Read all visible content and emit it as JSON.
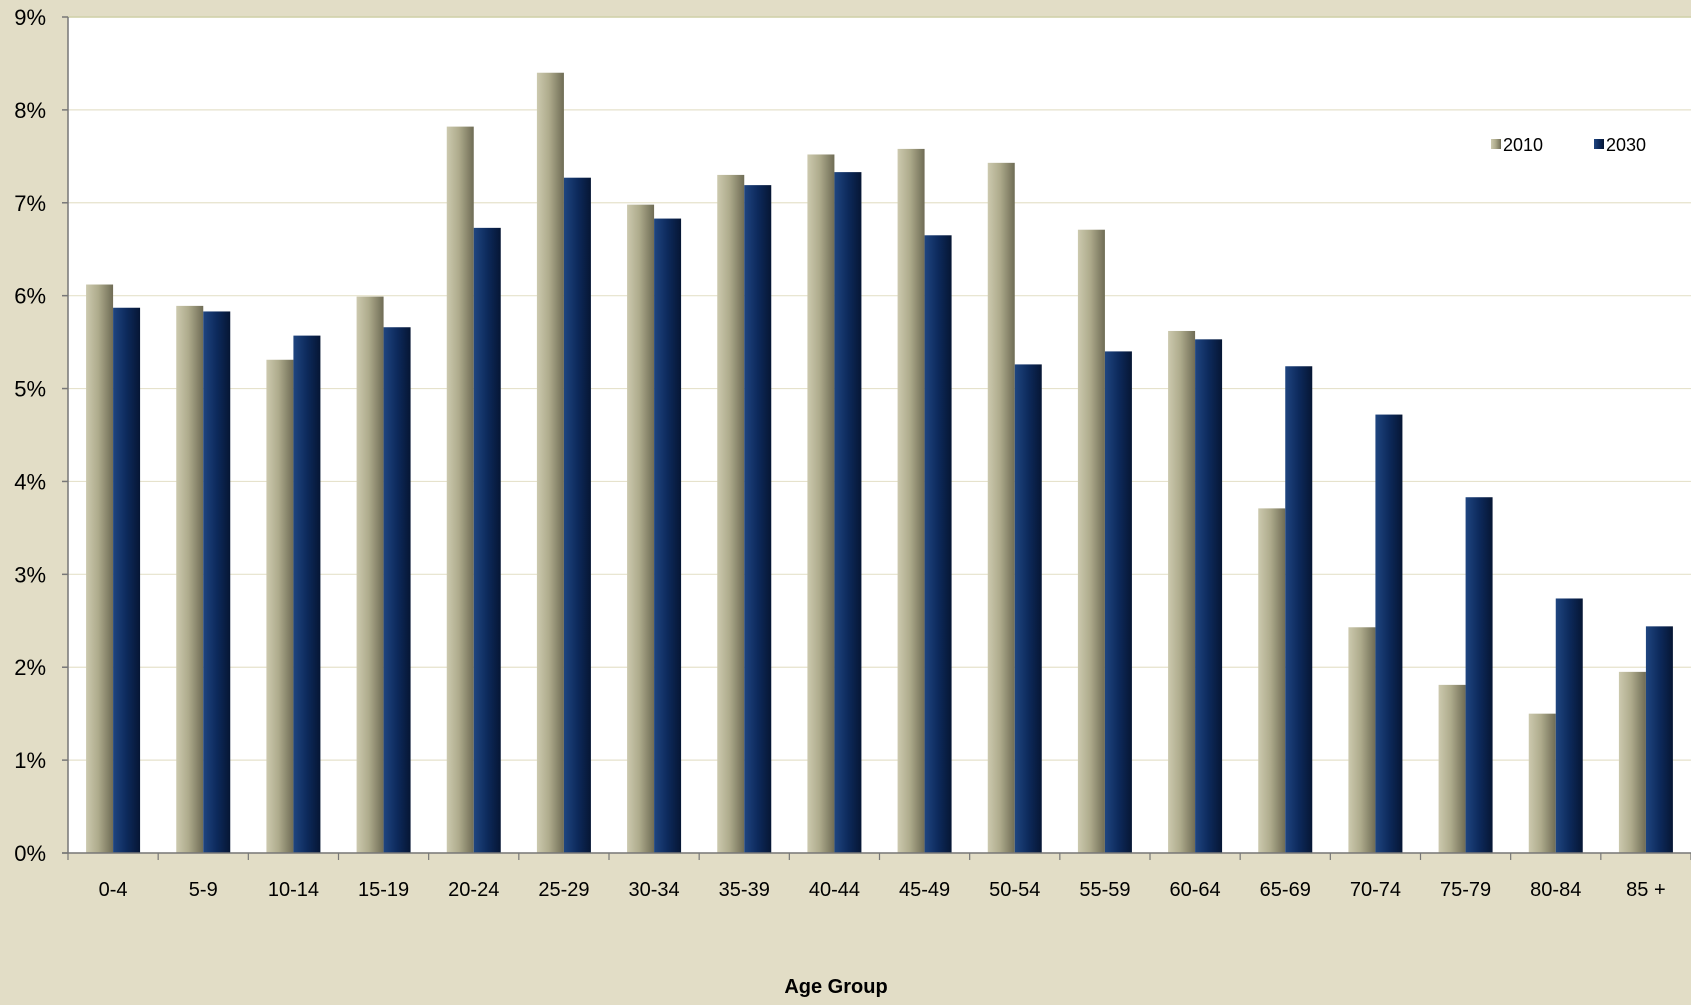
{
  "chart_data": {
    "type": "bar",
    "title": "",
    "xlabel": "Age Group",
    "ylabel": "",
    "ylim": [
      0,
      0.09
    ],
    "ytick_values": [
      0,
      0.01,
      0.02,
      0.03,
      0.04,
      0.05,
      0.06,
      0.07,
      0.08,
      0.09
    ],
    "ytick_labels": [
      "0%",
      "1%",
      "2%",
      "3%",
      "4%",
      "5%",
      "6%",
      "7%",
      "8%",
      "9%"
    ],
    "grid": true,
    "legend_position": "top-right",
    "categories": [
      "0-4",
      "5-9",
      "10-14",
      "15-19",
      "20-24",
      "25-29",
      "30-34",
      "35-39",
      "40-44",
      "45-49",
      "50-54",
      "55-59",
      "60-64",
      "65-69",
      "70-74",
      "75-79",
      "80-84",
      "85 +"
    ],
    "series": [
      {
        "name": "2010",
        "color": "#a8a586",
        "values": [
          0.0612,
          0.0589,
          0.0531,
          0.0599,
          0.0782,
          0.084,
          0.0698,
          0.073,
          0.0752,
          0.0758,
          0.0743,
          0.0671,
          0.0562,
          0.0371,
          0.0243,
          0.0181,
          0.015,
          0.0195
        ]
      },
      {
        "name": "2030",
        "color": "#0d2a5c",
        "values": [
          0.0587,
          0.0583,
          0.0557,
          0.0566,
          0.0673,
          0.0727,
          0.0683,
          0.0719,
          0.0733,
          0.0665,
          0.0526,
          0.054,
          0.0553,
          0.0524,
          0.0472,
          0.0383,
          0.0274,
          0.0244
        ]
      }
    ]
  },
  "colors": {
    "background": "#e2ddc6",
    "plot_area": "#ffffff",
    "gridline": "#e6e2cc",
    "axis": "#777777"
  }
}
